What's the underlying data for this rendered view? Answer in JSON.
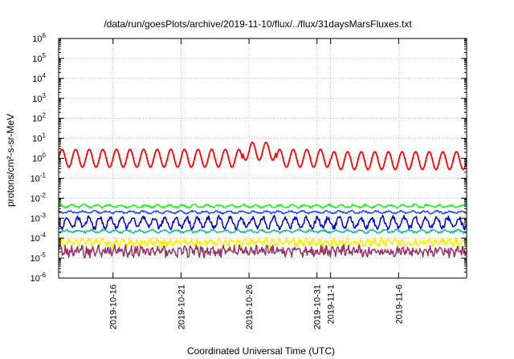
{
  "chart_data": {
    "type": "line",
    "title": "/data/run/goesPlots/archive/2019-11-10/flux/../flux/31daysMarsFluxes.txt",
    "xlabel": "Coordinated Universal Time (UTC)",
    "ylabel": "protons/cm²-s-sr-MeV",
    "y_scale": "log",
    "ylim": [
      1e-06,
      1000000.0
    ],
    "xlim": [
      "2019-10-12",
      "2019-11-11"
    ],
    "grid": true,
    "x_ticks": [
      "2019-10-16",
      "2019-10-21",
      "2019-10-26",
      "2019-10-31",
      "2019-11-1",
      "2019-11-6"
    ],
    "y_ticks": [
      -6,
      -5,
      -4,
      -3,
      -2,
      -1,
      0,
      1,
      2,
      3,
      4,
      5,
      6
    ],
    "series": [
      {
        "color": "#ff0000",
        "base": 1.0,
        "amplitude": 0.45,
        "period_days": 1.0,
        "noise": 0.0
      },
      {
        "color": "#22ee22",
        "base": 0.004,
        "amplitude": 0.06,
        "period_days": 0.9,
        "noise": 0.05
      },
      {
        "color": "#2244ff",
        "base": 0.002,
        "amplitude": 0.05,
        "period_days": 0.9,
        "noise": 0.04
      },
      {
        "color": "#0000cc",
        "base": 0.0006,
        "amplitude": 0.25,
        "period_days": 0.8,
        "noise": 0.12
      },
      {
        "color": "#11bb99",
        "base": 0.00022,
        "amplitude": 0.06,
        "period_days": 0.9,
        "noise": 0.05
      },
      {
        "color": "#ffee00",
        "base": 6e-05,
        "amplitude": 0.12,
        "period_days": 0.5,
        "noise": 0.15
      },
      {
        "color": "#993366",
        "base": 2.2e-05,
        "amplitude": 0.12,
        "period_days": 0.4,
        "noise": 0.22
      }
    ]
  }
}
